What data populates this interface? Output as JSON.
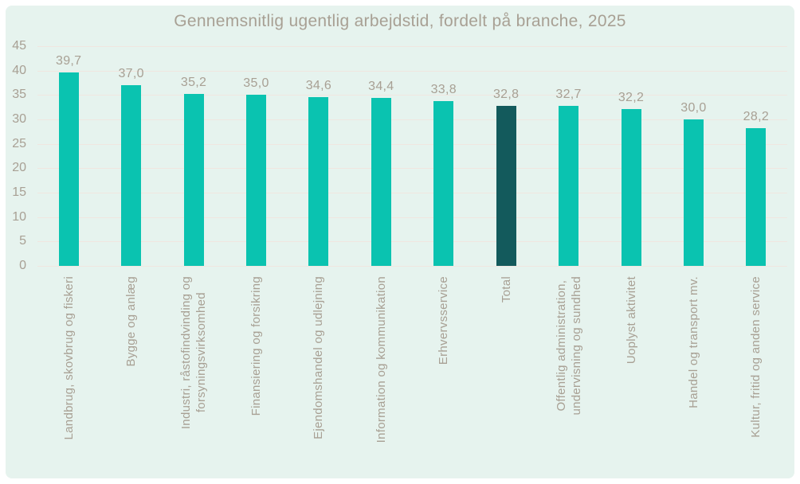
{
  "chart_data": {
    "type": "bar",
    "title": "Gennemsnitlig ugentlig arbejdstid, fordelt på branche, 2025",
    "categories": [
      "Landbrug, skovbrug og fiskeri",
      "Bygge og anlæg",
      "Industri, råstofindvinding og\nforsyningsvirksomhed",
      "Finansiering og forsikring",
      "Ejendomshandel og udlejning",
      "Information og kommunikation",
      "Erhvervsservice",
      "Total",
      "Offentlig administration,\nundervisning og sundhed",
      "Uoplyst aktivitet",
      "Handel og transport mv.",
      "Kultur, fritid og anden service"
    ],
    "values": [
      39.7,
      37.0,
      35.2,
      35.0,
      34.6,
      34.4,
      33.8,
      32.8,
      32.7,
      32.2,
      30.0,
      28.2
    ],
    "value_labels": [
      "39,7",
      "37,0",
      "35,2",
      "35,0",
      "34,6",
      "34,4",
      "33,8",
      "32,8",
      "32,7",
      "32,2",
      "30,0",
      "28,2"
    ],
    "highlight_category": "Total",
    "highlight_index": 7,
    "xlabel": "",
    "ylabel": "",
    "ylim": [
      0,
      45
    ],
    "yticks": [
      0,
      5,
      10,
      15,
      20,
      25,
      30,
      35,
      40,
      45
    ],
    "grid": true,
    "legend": false,
    "colors": {
      "bar": "#0ac3b0",
      "highlight_bar": "#135a5c",
      "background": "#e6f3ee",
      "text": "#a8a094",
      "gridline": "#f0e6e0"
    }
  }
}
